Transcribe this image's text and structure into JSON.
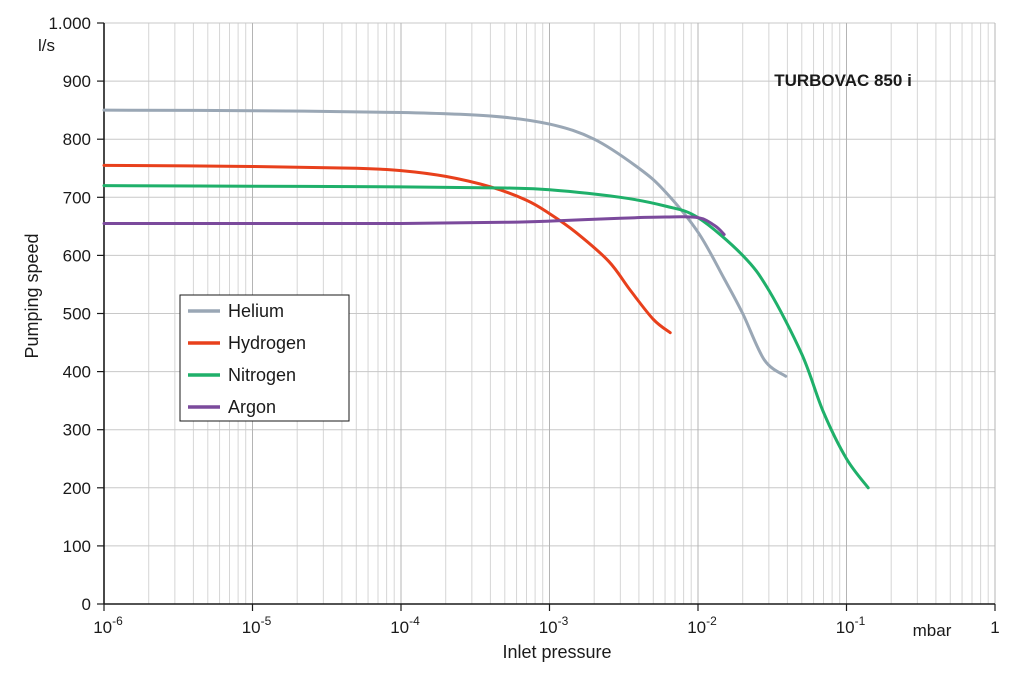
{
  "chart_data": {
    "type": "line",
    "title": "TURBOVAC 850 i",
    "xlabel": "Inlet pressure",
    "xunit": "mbar",
    "ylabel": "Pumping speed",
    "yunit": "l/s",
    "xscale": "log",
    "xlim": [
      1e-06,
      1
    ],
    "ylim": [
      0,
      1000
    ],
    "yticks": [
      0,
      100,
      200,
      300,
      400,
      500,
      600,
      700,
      800,
      900,
      1000
    ],
    "ytick_labels": [
      "0",
      "100",
      "200",
      "300",
      "400",
      "500",
      "600",
      "700",
      "800",
      "900",
      "1.000"
    ],
    "xticks": [
      {
        "value": 1e-06,
        "base": "10",
        "exp": "-6"
      },
      {
        "value": 1e-05,
        "base": "10",
        "exp": "-5"
      },
      {
        "value": 0.0001,
        "base": "10",
        "exp": "-4"
      },
      {
        "value": 0.001,
        "base": "10",
        "exp": "-3"
      },
      {
        "value": 0.01,
        "base": "10",
        "exp": "-2"
      },
      {
        "value": 0.1,
        "base": "10",
        "exp": "-1"
      },
      {
        "value": 1,
        "base": "1",
        "exp": ""
      }
    ],
    "grid": true,
    "legend_position": "middle-left",
    "series": [
      {
        "name": "Helium",
        "color": "#9aa7b5",
        "points": [
          [
            1e-06,
            850
          ],
          [
            1e-05,
            849
          ],
          [
            0.0001,
            846
          ],
          [
            0.0004,
            840
          ],
          [
            0.001,
            826
          ],
          [
            0.002,
            800
          ],
          [
            0.004,
            750
          ],
          [
            0.006,
            710
          ],
          [
            0.01,
            640
          ],
          [
            0.015,
            560
          ],
          [
            0.02,
            500
          ],
          [
            0.028,
            420
          ],
          [
            0.039,
            392
          ]
        ]
      },
      {
        "name": "Hydrogen",
        "color": "#e8401c",
        "points": [
          [
            1e-06,
            755
          ],
          [
            1e-05,
            753
          ],
          [
            5e-05,
            750
          ],
          [
            0.0001,
            746
          ],
          [
            0.0002,
            736
          ],
          [
            0.0004,
            718
          ],
          [
            0.0007,
            695
          ],
          [
            0.001,
            672
          ],
          [
            0.0015,
            640
          ],
          [
            0.0025,
            590
          ],
          [
            0.0035,
            540
          ],
          [
            0.005,
            490
          ],
          [
            0.0065,
            467
          ]
        ]
      },
      {
        "name": "Nitrogen",
        "color": "#1fb06a",
        "points": [
          [
            1e-06,
            720
          ],
          [
            1e-05,
            719
          ],
          [
            0.0001,
            718
          ],
          [
            0.0005,
            716
          ],
          [
            0.001,
            713
          ],
          [
            0.003,
            700
          ],
          [
            0.006,
            685
          ],
          [
            0.01,
            665
          ],
          [
            0.02,
            600
          ],
          [
            0.03,
            540
          ],
          [
            0.05,
            430
          ],
          [
            0.07,
            330
          ],
          [
            0.1,
            250
          ],
          [
            0.14,
            200
          ]
        ]
      },
      {
        "name": "Argon",
        "color": "#7b4a9c",
        "points": [
          [
            1e-06,
            655
          ],
          [
            1e-05,
            655
          ],
          [
            0.0001,
            655
          ],
          [
            0.0005,
            657
          ],
          [
            0.001,
            659
          ],
          [
            0.003,
            664
          ],
          [
            0.006,
            666
          ],
          [
            0.01,
            665
          ],
          [
            0.013,
            651
          ],
          [
            0.015,
            636
          ]
        ]
      }
    ]
  }
}
